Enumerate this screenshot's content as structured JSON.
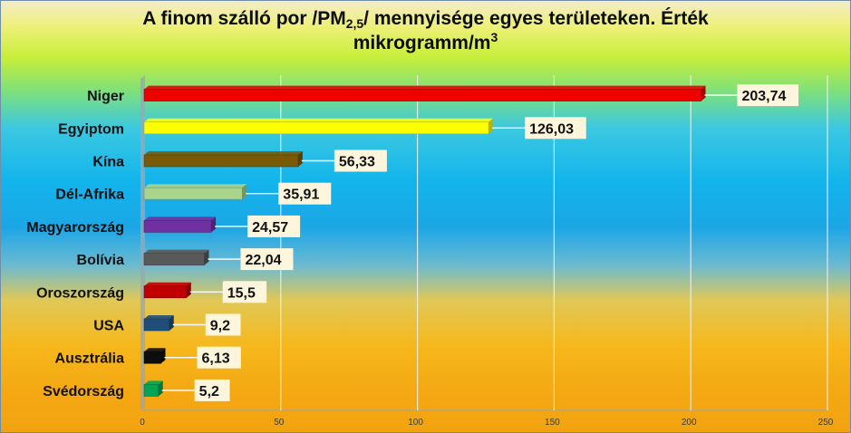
{
  "title": {
    "main": "A finom szálló por /PM",
    "sub": "2,5",
    "rest": "/ mennyisége egyes területeken. Érték",
    "line2": "mikrogramm/m",
    "sup": "3"
  },
  "chart_data": {
    "type": "bar",
    "orientation": "horizontal",
    "categories": [
      "Niger",
      "Egyiptom",
      "Kína",
      "Dél-Afrika",
      "Magyarország",
      "Bolívia",
      "Oroszország",
      "USA",
      "Ausztrália",
      "Svédország"
    ],
    "values": [
      203.74,
      126.03,
      56.33,
      35.91,
      24.57,
      22.04,
      15.5,
      9.2,
      6.13,
      5.2
    ],
    "value_labels": [
      "203,74",
      "126,03",
      "56,33",
      "35,91",
      "24,57",
      "22,04",
      "15,5",
      "9,2",
      "6,13",
      "5,2"
    ],
    "bar_colors": [
      "#ee0000",
      "#ffff00",
      "#7a5a06",
      "#a8d48c",
      "#7030a0",
      "#595959",
      "#c00000",
      "#1f4e79",
      "#0d0d0d",
      "#00a651"
    ],
    "x_ticks": [
      0,
      50,
      100,
      150,
      200,
      250
    ],
    "xlim": [
      0,
      250
    ],
    "grid": true,
    "legend": "none"
  }
}
